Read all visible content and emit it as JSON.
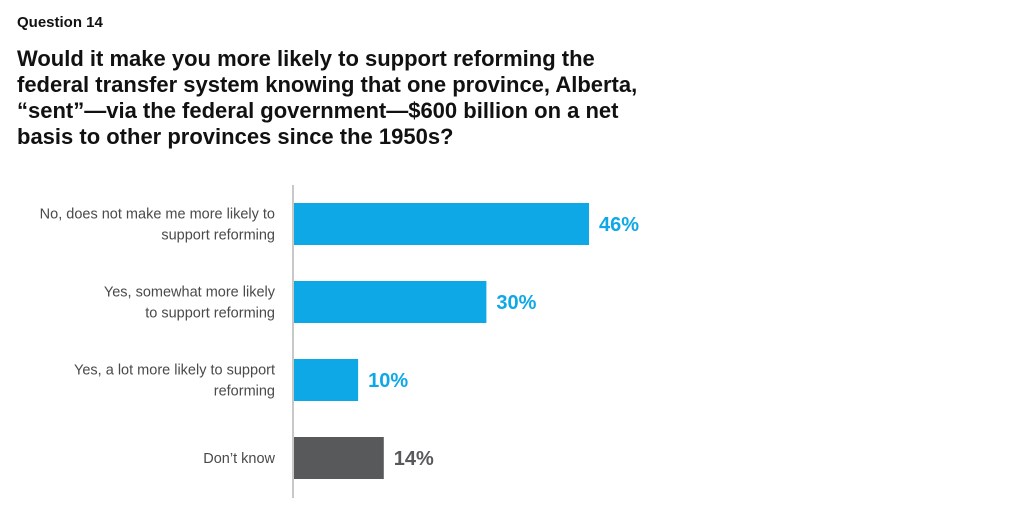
{
  "header": {
    "kicker": "Question 14",
    "title_lines": [
      "Would it make you more likely to support reforming the",
      "federal transfer system knowing that one province, Alberta,",
      "“sent”—via the federal government—$600 billion on a net",
      "basis to other provinces since the 1950s?"
    ]
  },
  "chart_data": {
    "type": "bar",
    "orientation": "horizontal",
    "title": "Would it make you more likely to support reforming the federal transfer system knowing that one province, Alberta, “sent”—via the federal government—$600 billion on a net basis to other provinces since the 1950s?",
    "categories": [
      [
        "No, does not make me more likely to",
        "support reforming"
      ],
      [
        "Yes, somewhat more likely",
        "to support reforming"
      ],
      [
        "Yes, a lot more likely to support",
        "reforming"
      ],
      [
        "Don’t know"
      ]
    ],
    "values": [
      46,
      30,
      10,
      14
    ],
    "value_labels": [
      "46%",
      "30%",
      "10%",
      "14%"
    ],
    "unit": "%",
    "bar_colors": [
      "#0ea8e6",
      "#0ea8e6",
      "#0ea8e6",
      "#58595b"
    ],
    "label_colors": [
      "#0ea8e6",
      "#0ea8e6",
      "#0ea8e6",
      "#58595b"
    ],
    "axis_color": "#c8c8c8",
    "xlim": [
      0,
      100
    ],
    "grid": false,
    "legend": "none"
  }
}
